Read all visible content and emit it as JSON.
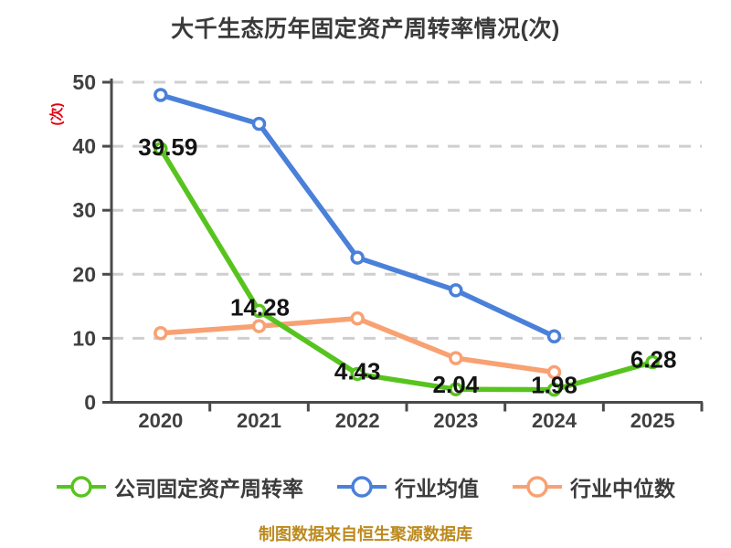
{
  "chart_data": {
    "type": "line",
    "title": "大千生态历年固定资产周转率情况(次)",
    "y_axis_unit": "(次)",
    "source_note": "制图数据来自恒生聚源数据库",
    "categories": [
      "2020",
      "2021",
      "2022",
      "2023",
      "2024",
      "2025"
    ],
    "series": [
      {
        "name": "公司固定资产周转率",
        "color": "#57c41e",
        "values": [
          39.59,
          14.28,
          4.43,
          2.04,
          1.98,
          6.28
        ],
        "data_labels": [
          "39.59",
          "14.28",
          "4.43",
          "2.04",
          "1.98",
          "6.28"
        ],
        "label_offsets": [
          [
            8,
            7
          ],
          [
            1,
            5
          ],
          [
            0,
            6
          ],
          [
            0,
            4
          ],
          [
            0,
            4
          ],
          [
            1,
            6
          ]
        ]
      },
      {
        "name": "行业均值",
        "color": "#4a80d9",
        "values": [
          48.0,
          43.5,
          22.6,
          17.5,
          10.3,
          null
        ],
        "data_labels": null,
        "label_offsets": null
      },
      {
        "name": "行业中位数",
        "color": "#f8a173",
        "values": [
          10.8,
          11.9,
          13.1,
          6.9,
          4.7,
          null
        ],
        "data_labels": null,
        "label_offsets": null
      }
    ],
    "ylim": [
      0,
      50
    ],
    "yticks": [
      0,
      10,
      20,
      30,
      40,
      50
    ],
    "grid": "horizontal-dashed",
    "legend_position": "bottom",
    "marker": "circle-white-fill"
  },
  "colors": {
    "title_text": "#3a3a3a",
    "axis": "#4a4a4a",
    "tick_label": "#404040",
    "gridline": "#cfcfcf",
    "data_label": "#141414",
    "unit_red": "#e60012",
    "legend_text": "#3c3c3c",
    "footer_gold": "#bc8a1e",
    "background": "#ffffff"
  }
}
